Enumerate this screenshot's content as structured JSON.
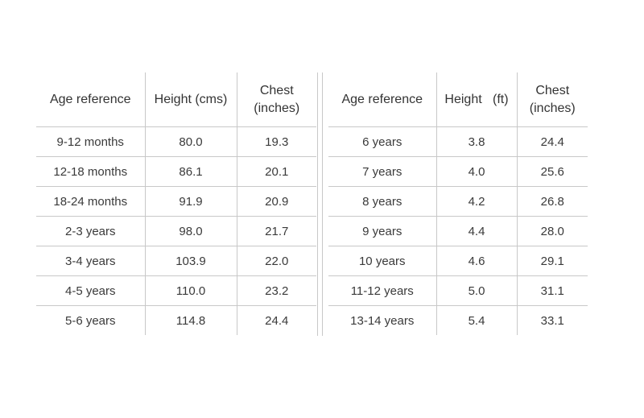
{
  "left_table": {
    "headers": {
      "age": "Age reference",
      "height": "Height (cms)",
      "chest_line1": "Chest",
      "chest_line2": "(inches)"
    },
    "rows": [
      {
        "age": "9-12 months",
        "height": "80.0",
        "chest": "19.3"
      },
      {
        "age": "12-18 months",
        "height": "86.1",
        "chest": "20.1"
      },
      {
        "age": "18-24 months",
        "height": "91.9",
        "chest": "20.9"
      },
      {
        "age": "2-3 years",
        "height": "98.0",
        "chest": "21.7"
      },
      {
        "age": "3-4 years",
        "height": "103.9",
        "chest": "22.0"
      },
      {
        "age": "4-5 years",
        "height": "110.0",
        "chest": "23.2"
      },
      {
        "age": "5-6 years",
        "height": "114.8",
        "chest": "24.4"
      }
    ]
  },
  "right_table": {
    "headers": {
      "age": "Age reference",
      "height": "Height   (ft)",
      "chest_line1": "Chest",
      "chest_line2": "(inches)"
    },
    "rows": [
      {
        "age": "6 years",
        "height": "3.8",
        "chest": "24.4"
      },
      {
        "age": "7 years",
        "height": "4.0",
        "chest": "25.6"
      },
      {
        "age": "8 years",
        "height": "4.2",
        "chest": "26.8"
      },
      {
        "age": "9 years",
        "height": "4.4",
        "chest": "28.0"
      },
      {
        "age": "10 years",
        "height": "4.6",
        "chest": "29.1"
      },
      {
        "age": "11-12 years",
        "height": "5.0",
        "chest": "31.1"
      },
      {
        "age": "13-14 years",
        "height": "5.4",
        "chest": "33.1"
      }
    ]
  }
}
